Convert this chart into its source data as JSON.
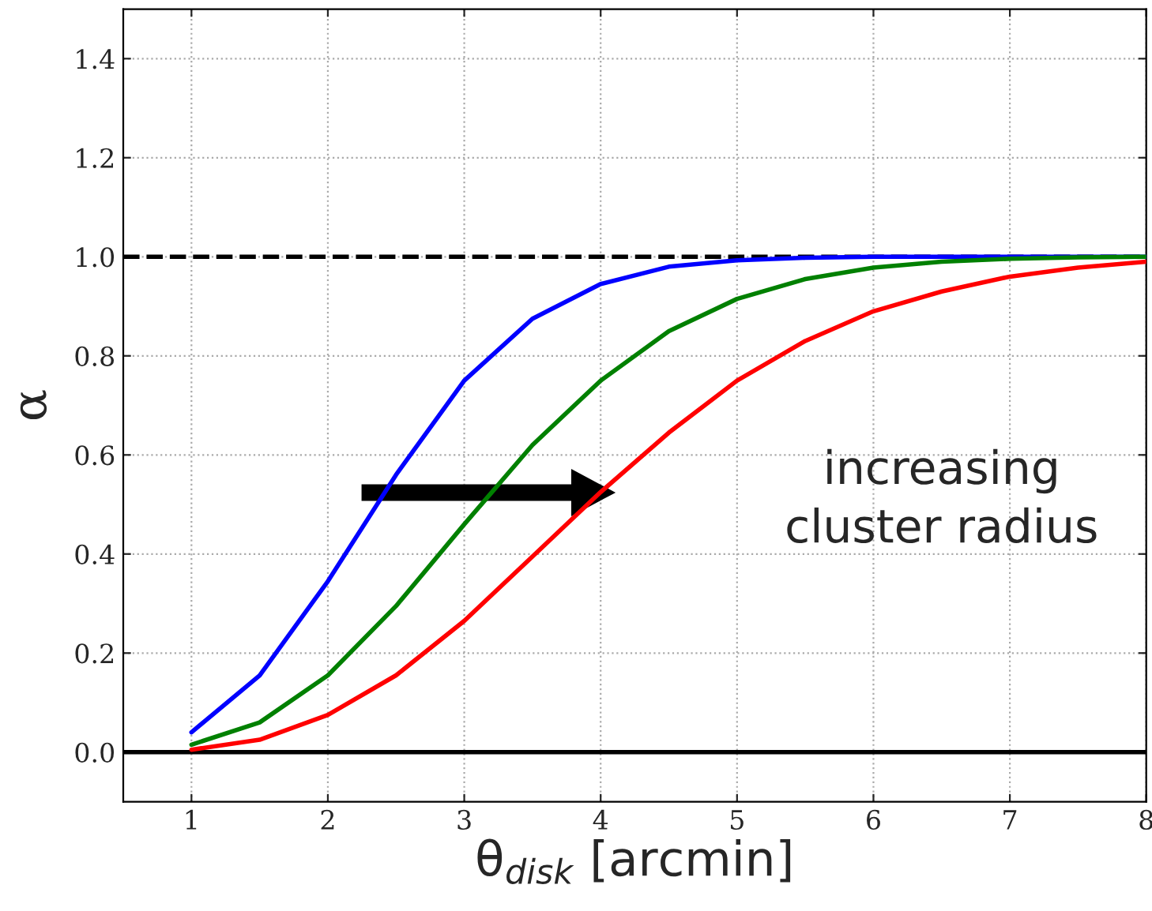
{
  "chart_data": {
    "type": "line",
    "xlabel": "θ$_{disk}$ [arcmin]",
    "ylabel": "α",
    "x": [
      1,
      1.5,
      2,
      2.5,
      3,
      3.5,
      4,
      4.5,
      5,
      5.5,
      6,
      6.5,
      7,
      7.5,
      8
    ],
    "series": [
      {
        "color": "#0000ff",
        "values": [
          0.04,
          0.155,
          0.345,
          0.56,
          0.75,
          0.875,
          0.945,
          0.98,
          0.993,
          0.998,
          1.0,
          1.0,
          1.0,
          1.0,
          1.0
        ]
      },
      {
        "color": "#008000",
        "values": [
          0.015,
          0.06,
          0.155,
          0.295,
          0.46,
          0.62,
          0.75,
          0.85,
          0.915,
          0.955,
          0.978,
          0.99,
          0.996,
          0.999,
          1.0
        ]
      },
      {
        "color": "#ff0000",
        "values": [
          0.005,
          0.025,
          0.075,
          0.155,
          0.265,
          0.395,
          0.525,
          0.645,
          0.75,
          0.83,
          0.89,
          0.93,
          0.96,
          0.978,
          0.99
        ]
      }
    ],
    "xlim": [
      0.5,
      8
    ],
    "xticks": [
      1,
      2,
      3,
      4,
      5,
      6,
      7,
      8
    ],
    "ylim": [
      -0.1,
      1.5
    ],
    "yticks": [
      {
        "value": 0,
        "label": "0.0"
      },
      {
        "value": 0.2,
        "label": "0.2"
      },
      {
        "value": 0.4,
        "label": "0.4"
      },
      {
        "value": 0.6,
        "label": "0.6"
      },
      {
        "value": 0.8,
        "label": "0.8"
      },
      {
        "value": 1.0,
        "label": "1.0"
      },
      {
        "value": 1.2,
        "label": "1.2"
      },
      {
        "value": 1.4,
        "label": "1.4"
      }
    ],
    "ref_lines": [
      {
        "axis": "y",
        "value": 1.0,
        "color": "#000000",
        "line_style": "dashed"
      },
      {
        "axis": "y",
        "value": 0,
        "color": "#000000",
        "line_style": "solid"
      }
    ],
    "annotations": [
      "increasing\ncluster radius"
    ],
    "grid": true,
    "line_style": "solid",
    "marker": "none",
    "legend": false
  }
}
